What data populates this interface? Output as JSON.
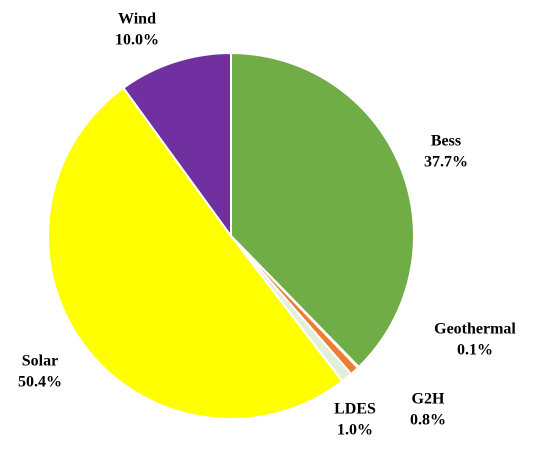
{
  "chart_data": {
    "type": "pie",
    "categories": [
      "Bess",
      "Geothermal",
      "G2H",
      "LDES",
      "Solar",
      "Wind"
    ],
    "values": [
      37.7,
      0.1,
      0.8,
      1.0,
      50.4,
      10.0
    ],
    "value_labels": [
      "37.7%",
      "0.1%",
      "0.8%",
      "1.0%",
      "50.4%",
      "10.0%"
    ],
    "colors": [
      "#70ad47",
      "#c00000",
      "#ed7d31",
      "#e2efda",
      "#ffff00",
      "#7030a0"
    ]
  }
}
